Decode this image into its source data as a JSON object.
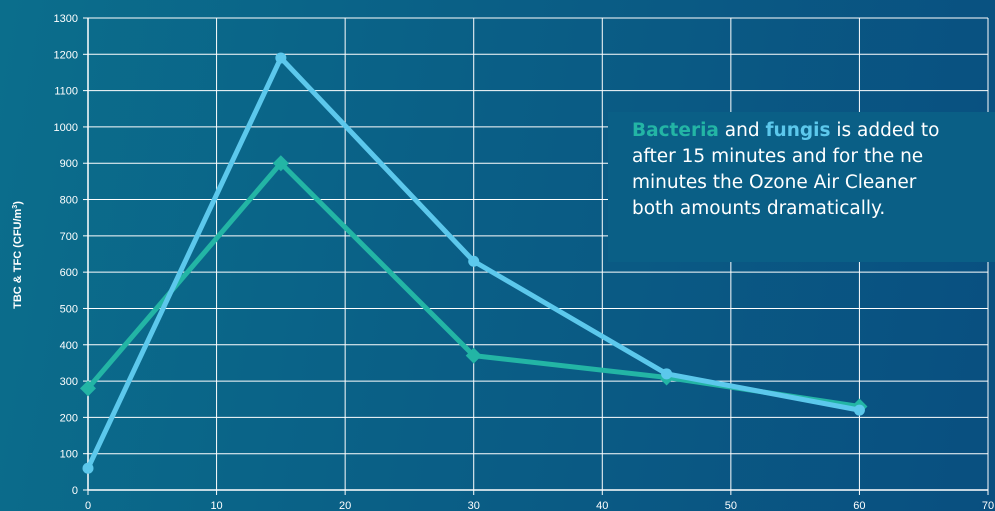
{
  "chart_data": {
    "type": "line",
    "ylabel": "TBC & TFC (CFU/m",
    "ylabel_superscript": "3",
    "ylabel_suffix": ")",
    "xlabel": "",
    "title": "",
    "xlim": [
      0,
      70
    ],
    "ylim": [
      0,
      1300
    ],
    "x_ticks": [
      0,
      10,
      20,
      30,
      40,
      50,
      60,
      70
    ],
    "y_ticks": [
      0,
      100,
      200,
      300,
      400,
      500,
      600,
      700,
      800,
      900,
      1000,
      1100,
      1200,
      1300
    ],
    "grid": true,
    "series": [
      {
        "color": "#23b5a5",
        "marker": "diamond",
        "x": [
          0,
          15,
          30,
          45,
          60
        ],
        "values": [
          280,
          900,
          370,
          310,
          230
        ]
      },
      {
        "color": "#5cc8ec",
        "marker": "circle",
        "x": [
          0,
          15,
          30,
          45,
          60
        ],
        "values": [
          60,
          1190,
          630,
          320,
          220
        ]
      }
    ]
  },
  "annotation": {
    "word_bacteria": "Bacteria",
    "text_and": " and ",
    "word_fungis": "fungis",
    "text_line1_rest": " is added to",
    "line2": "after 15 minutes and for the ne",
    "line3": "minutes the Ozone Air Cleaner",
    "line4": "both amounts dramatically."
  },
  "colors": {
    "background": "#0a5f86",
    "bacteria": "#23b5a5",
    "fungis": "#5cc8ec",
    "grid": "#ffffff"
  }
}
